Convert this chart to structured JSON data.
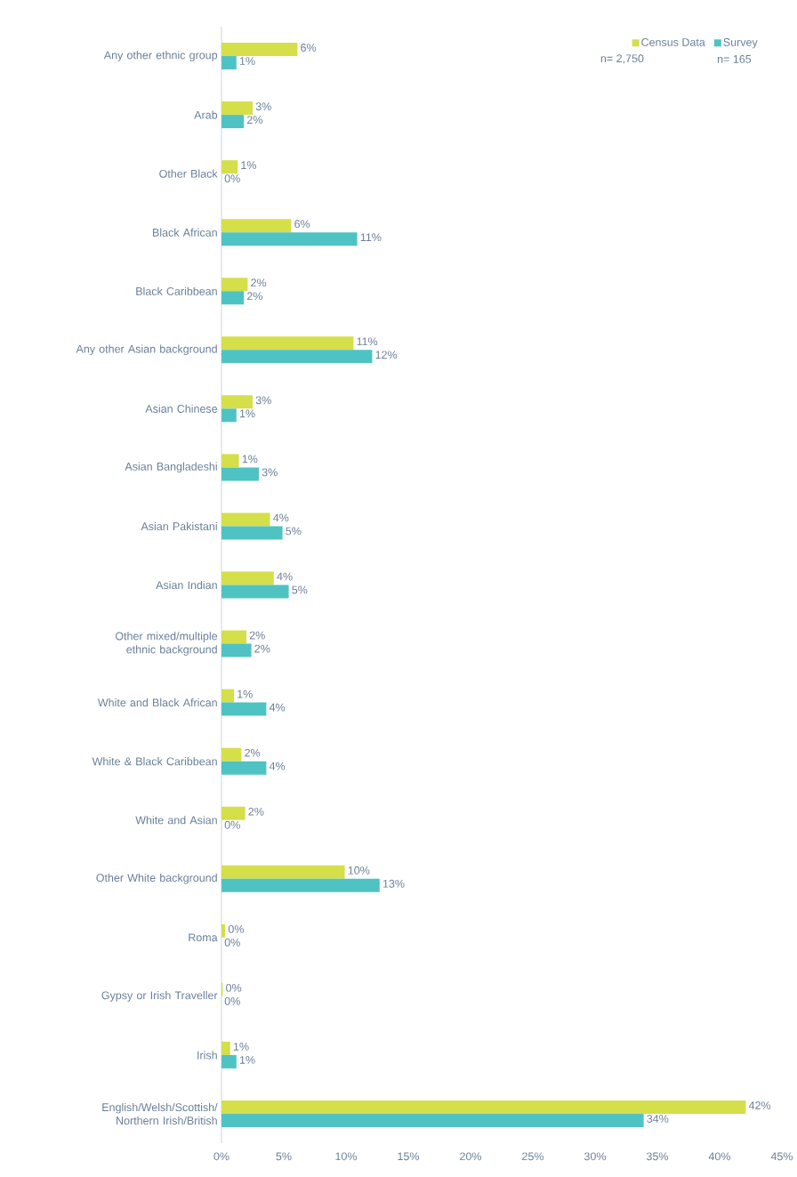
{
  "chart_data": {
    "type": "bar",
    "orientation": "horizontal",
    "categories": [
      "Any other ethnic group",
      "Arab",
      "Other Black",
      "Black African",
      "Black Caribbean",
      "Any other Asian background",
      "Asian Chinese",
      "Asian Bangladeshi",
      "Asian Pakistani",
      "Asian Indian",
      "Other mixed/multiple ethnic background",
      "White and Black African",
      "White & Black Caribbean",
      "White and Asian",
      "Other White background",
      "Roma",
      "Gypsy or Irish Traveller",
      "Irish",
      "English/Welsh/Scottish/Northern Irish/British"
    ],
    "series": [
      {
        "name": "Census Data",
        "color": "#d4df4a",
        "values": [
          6.1,
          2.5,
          1.3,
          5.6,
          2.1,
          10.6,
          2.5,
          1.4,
          3.9,
          4.2,
          2.0,
          1.0,
          1.6,
          1.9,
          9.9,
          0.3,
          0.1,
          0.7,
          42.1
        ],
        "value_labels": [
          "6%",
          "3%",
          "1%",
          "6%",
          "2%",
          "11%",
          "3%",
          "1%",
          "4%",
          "4%",
          "2%",
          "1%",
          "2%",
          "2%",
          "10%",
          "0%",
          "0%",
          "1%",
          "42%"
        ]
      },
      {
        "name": "Survey",
        "color": "#4fc3c3",
        "values": [
          1.2,
          1.8,
          0,
          10.9,
          1.8,
          12.1,
          1.2,
          3.0,
          4.9,
          5.4,
          2.4,
          3.6,
          3.6,
          0,
          12.7,
          0,
          0,
          1.2,
          33.9
        ],
        "value_labels": [
          "1%",
          "2%",
          "0%",
          "11%",
          "2%",
          "12%",
          "1%",
          "3%",
          "5%",
          "5%",
          "2%",
          "4%",
          "4%",
          "0%",
          "13%",
          "0%",
          "0%",
          "1%",
          "34%"
        ]
      }
    ],
    "xlim": [
      0,
      45
    ],
    "xticks": [
      {
        "value": 0,
        "label": "0%"
      },
      {
        "value": 5,
        "label": "5%"
      },
      {
        "value": 10,
        "label": "10%"
      },
      {
        "value": 15,
        "label": "15%"
      },
      {
        "value": 20,
        "label": "20%"
      },
      {
        "value": 25,
        "label": "25%"
      },
      {
        "value": 30,
        "label": "30%"
      },
      {
        "value": 35,
        "label": "35%"
      },
      {
        "value": 40,
        "label": "40%"
      },
      {
        "value": 45,
        "label": "45%"
      }
    ],
    "legend": "top right",
    "annotations": [
      "n= 2,750",
      "n= 165"
    ]
  }
}
